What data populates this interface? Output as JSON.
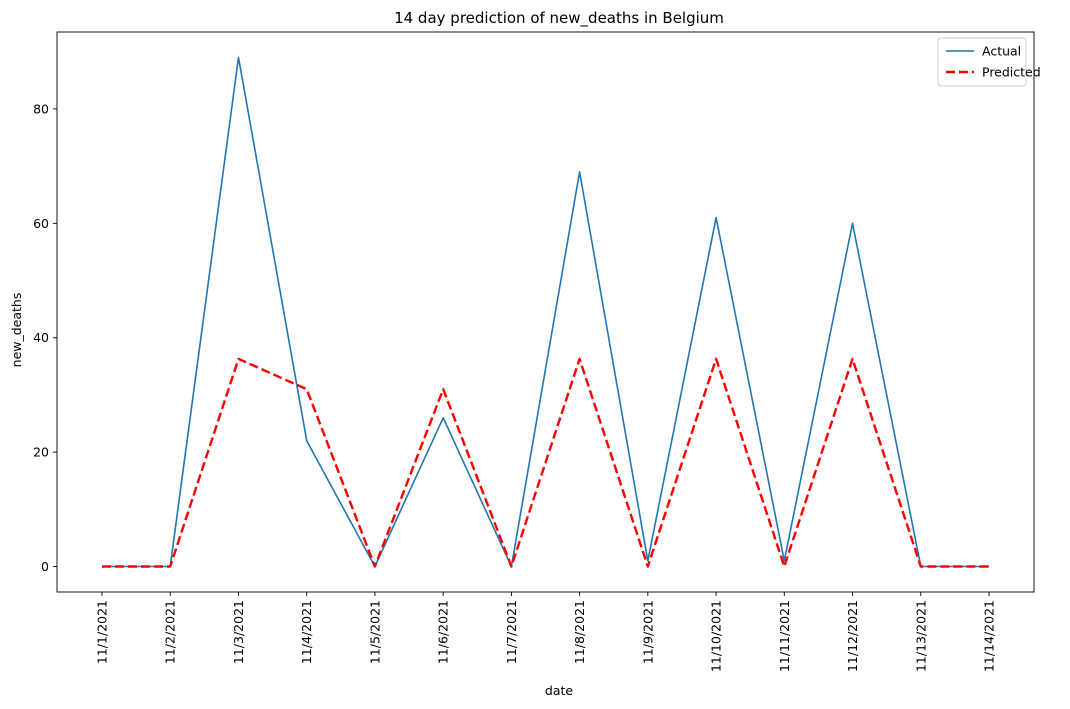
{
  "chart_data": {
    "type": "line",
    "title": "14 day prediction of new_deaths in Belgium",
    "xlabel": "date",
    "ylabel": "new_deaths",
    "x": [
      "11/1/2021",
      "11/2/2021",
      "11/3/2021",
      "11/4/2021",
      "11/5/2021",
      "11/6/2021",
      "11/7/2021",
      "11/8/2021",
      "11/9/2021",
      "11/10/2021",
      "11/11/2021",
      "11/12/2021",
      "11/13/2021",
      "11/14/2021"
    ],
    "series": [
      {
        "name": "Actual",
        "color": "#1f77b4",
        "style": "solid",
        "values": [
          0,
          0,
          89,
          22,
          0,
          26,
          0,
          69,
          1,
          61,
          1,
          60,
          0,
          0
        ]
      },
      {
        "name": "Predicted",
        "color": "#ff0000",
        "style": "dashed",
        "values": [
          0,
          0,
          36.3,
          31,
          0,
          31,
          0,
          36.3,
          0,
          36.3,
          0,
          36.3,
          0,
          0
        ]
      }
    ],
    "ylim": [
      -4.45,
      93.45
    ],
    "yticks": [
      0,
      20,
      40,
      60,
      80
    ],
    "grid": false,
    "legend": "top-right"
  }
}
